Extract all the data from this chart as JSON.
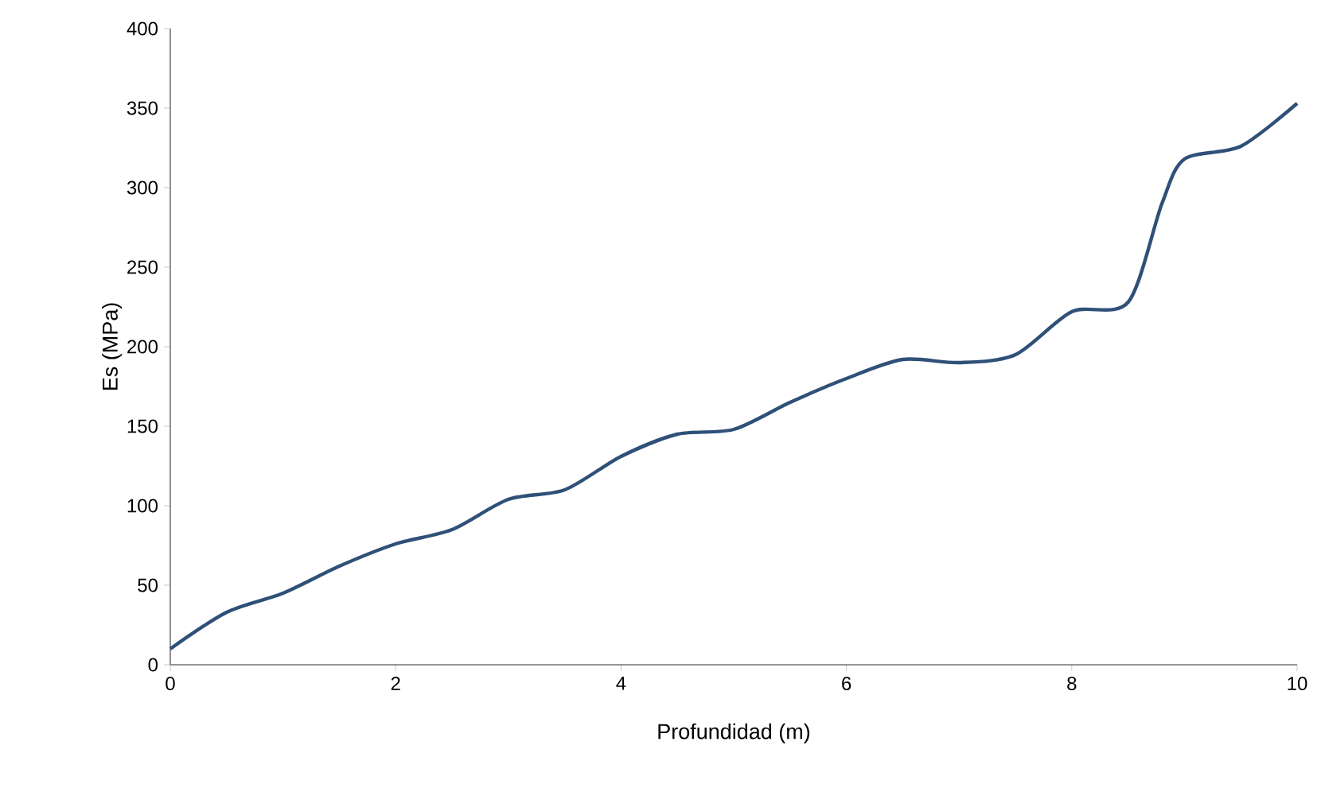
{
  "chart_data": {
    "type": "line",
    "xlabel": "Profundidad (m)",
    "ylabel": "Es (MPa)",
    "x": [
      0,
      0.5,
      1,
      1.5,
      2,
      2.5,
      3,
      3.5,
      4,
      4.5,
      5,
      5.5,
      6,
      6.5,
      7,
      7.5,
      8,
      8.5,
      8.8,
      9,
      9.5,
      10
    ],
    "series": [
      {
        "color": "#2f5078",
        "values": [
          10,
          33,
          45,
          62,
          76,
          85,
          104,
          110,
          131,
          145,
          148,
          165,
          180,
          192,
          190,
          195,
          222,
          228,
          290,
          318,
          326,
          353
        ]
      }
    ],
    "xlim": [
      0,
      10
    ],
    "ylim": [
      0,
      400
    ],
    "xticks": [
      0,
      2,
      4,
      6,
      8,
      10
    ],
    "yticks": [
      0,
      50,
      100,
      150,
      200,
      250,
      300,
      350,
      400
    ],
    "grid": false,
    "marker": "none",
    "line_style": "solid"
  }
}
